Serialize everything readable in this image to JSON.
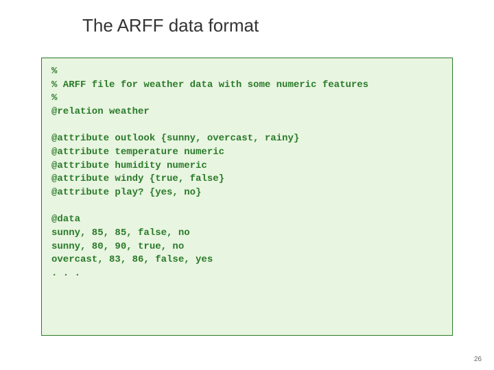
{
  "title": "The ARFF data format",
  "code": {
    "lines": [
      "%",
      "% ARFF file for weather data with some numeric features",
      "%",
      "@relation weather",
      "",
      "@attribute outlook {sunny, overcast, rainy}",
      "@attribute temperature numeric",
      "@attribute humidity numeric",
      "@attribute windy {true, false}",
      "@attribute play? {yes, no}",
      "",
      "@data",
      "sunny, 85, 85, false, no",
      "sunny, 80, 90, true, no",
      "overcast, 83, 86, false, yes",
      ". . ."
    ],
    "text_color": "#2a7a2a",
    "background_color": "#e8f5e0",
    "border_color": "#2a7a2a",
    "font_family": "Courier New",
    "font_size_pt": 11,
    "font_weight": "bold"
  },
  "page_number": "26",
  "slide_background": "#ffffff",
  "title_color": "#333333",
  "title_font_size_pt": 20
}
